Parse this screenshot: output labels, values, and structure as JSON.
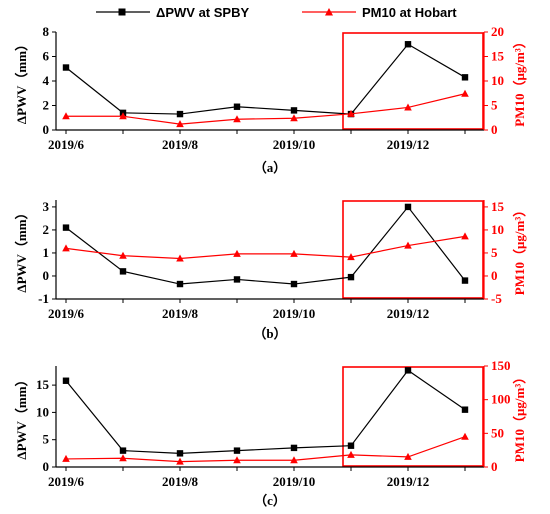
{
  "legend": [
    {
      "label": "ΔPWV at SPBY",
      "color": "#000000",
      "marker": "square"
    },
    {
      "label": "PM10 at Hobart",
      "color": "#ff0000",
      "marker": "triangle"
    }
  ],
  "chart_data": [
    {
      "type": "line",
      "panel_label": "（a）",
      "x": [
        "2019/6",
        "2019/7",
        "2019/8",
        "2019/9",
        "2019/10",
        "2019/11",
        "2019/12",
        "2020/1"
      ],
      "x_tick_labels": [
        "2019/6",
        "2019/8",
        "2019/10",
        "2019/12"
      ],
      "ylabel": "ΔPWV（mm）",
      "ylabel_right": "PM10（μg/m³）",
      "ylim": [
        0,
        8
      ],
      "yticks": [
        "0",
        "2",
        "4",
        "6",
        "8"
      ],
      "ylim_right": [
        0,
        20
      ],
      "yticks_right": [
        "0",
        "5",
        "10",
        "15",
        "20"
      ],
      "highlight_range": [
        "2019/11",
        "2020/1"
      ],
      "series": [
        {
          "name": "ΔPWV at SPBY",
          "axis": "left",
          "color": "#000000",
          "marker": "square",
          "values": [
            5.1,
            1.4,
            1.3,
            1.9,
            1.6,
            1.3,
            7.0,
            4.3
          ]
        },
        {
          "name": "PM10 at Hobart",
          "axis": "right",
          "color": "#ff0000",
          "marker": "triangle",
          "values": [
            2.8,
            2.8,
            1.2,
            2.2,
            2.4,
            3.3,
            4.6,
            7.4
          ]
        }
      ]
    },
    {
      "type": "line",
      "panel_label": "（b）",
      "x": [
        "2019/6",
        "2019/7",
        "2019/8",
        "2019/9",
        "2019/10",
        "2019/11",
        "2019/12",
        "2020/1"
      ],
      "x_tick_labels": [
        "2019/6",
        "2019/8",
        "2019/10",
        "2019/12"
      ],
      "ylabel": "ΔPWV（mm）",
      "ylabel_right": "PM10（μg/m³）",
      "ylim": [
        -1,
        3.3
      ],
      "yticks": [
        "-1",
        "0",
        "1",
        "2",
        "3"
      ],
      "ylim_right": [
        -5,
        16.5
      ],
      "yticks_right": [
        "-5",
        "0",
        "5",
        "10",
        "15"
      ],
      "highlight_range": [
        "2019/11",
        "2020/1"
      ],
      "series": [
        {
          "name": "ΔPWV at SPBY",
          "axis": "left",
          "color": "#000000",
          "marker": "square",
          "values": [
            2.1,
            0.2,
            -0.35,
            -0.15,
            -0.35,
            -0.05,
            3.0,
            -0.2
          ]
        },
        {
          "name": "PM10 at Hobart",
          "axis": "right",
          "color": "#ff0000",
          "marker": "triangle",
          "values": [
            6.0,
            4.4,
            3.8,
            4.8,
            4.8,
            4.1,
            6.6,
            8.6
          ]
        }
      ]
    },
    {
      "type": "line",
      "panel_label": "（c）",
      "x": [
        "2019/6",
        "2019/7",
        "2019/8",
        "2019/9",
        "2019/10",
        "2019/11",
        "2019/12",
        "2020/1"
      ],
      "x_tick_labels": [
        "2019/6",
        "2019/8",
        "2019/10",
        "2019/12"
      ],
      "ylabel": "ΔPWV（mm）",
      "ylabel_right": "PM10（μg/m³）",
      "ylim": [
        0,
        18.5
      ],
      "yticks": [
        "0",
        "5",
        "10",
        "15"
      ],
      "ylim_right": [
        0,
        150
      ],
      "yticks_right": [
        "0",
        "50",
        "100",
        "150"
      ],
      "highlight_range": [
        "2019/11",
        "2020/1"
      ],
      "series": [
        {
          "name": "ΔPWV at SPBY",
          "axis": "left",
          "color": "#000000",
          "marker": "square",
          "values": [
            15.8,
            3.0,
            2.5,
            3.0,
            3.5,
            3.9,
            17.7,
            10.5
          ]
        },
        {
          "name": "PM10 at Hobart",
          "axis": "right",
          "color": "#ff0000",
          "marker": "triangle",
          "values": [
            12,
            13,
            8,
            10,
            10,
            18,
            15,
            45
          ]
        }
      ]
    }
  ]
}
